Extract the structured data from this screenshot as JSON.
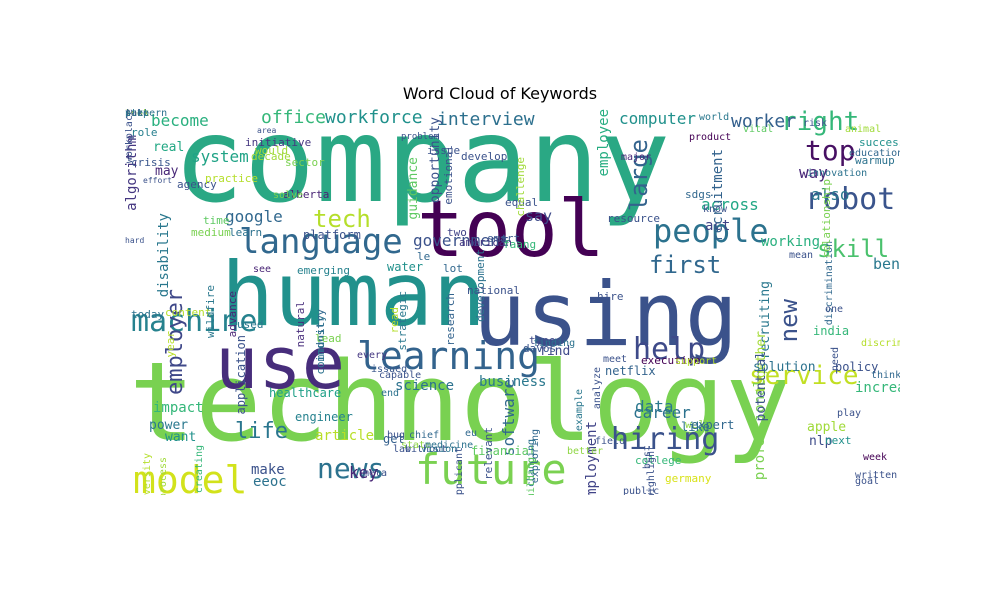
{
  "chart_data": {
    "type": "wordcloud",
    "title": "Word Cloud of Keywords",
    "words": [
      {
        "text": "company",
        "c": "#2aa884",
        "r": 0
      },
      {
        "text": "technology",
        "c": "#79d151",
        "r": 0
      },
      {
        "text": "human",
        "c": "#21918c",
        "r": 0
      },
      {
        "text": "using",
        "c": "#3b528b",
        "r": 0
      },
      {
        "text": "tool",
        "c": "#440154",
        "r": 0
      },
      {
        "text": "use",
        "c": "#472d7b",
        "r": 0
      },
      {
        "text": "future",
        "c": "#7ad151",
        "r": 0
      },
      {
        "text": "model",
        "c": "#d2e21b",
        "r": 0
      },
      {
        "text": "language",
        "c": "#31688e",
        "r": 0
      },
      {
        "text": "learning",
        "c": "#33638d",
        "r": 0
      },
      {
        "text": "people",
        "c": "#2c728e",
        "r": 0
      },
      {
        "text": "robot",
        "c": "#3a548c",
        "r": 0
      },
      {
        "text": "hiring",
        "c": "#3b528b",
        "r": 0
      },
      {
        "text": "news",
        "c": "#2c728e",
        "r": 0
      },
      {
        "text": "machine",
        "c": "#26828e",
        "r": 0
      },
      {
        "text": "help",
        "c": "#3e4a89",
        "r": 0
      },
      {
        "text": "top",
        "c": "#471063",
        "r": 0
      },
      {
        "text": "right",
        "c": "#35b779",
        "r": 0
      },
      {
        "text": "service",
        "c": "#c2df23",
        "r": 0
      },
      {
        "text": "tech",
        "c": "#b5de2b",
        "r": 0
      },
      {
        "text": "first",
        "c": "#31688e",
        "r": 0
      },
      {
        "text": "skill",
        "c": "#4ac16d",
        "r": 0
      },
      {
        "text": "new",
        "c": "#3b528b",
        "r": -90
      },
      {
        "text": "large",
        "c": "#33638d",
        "r": -90
      },
      {
        "text": "employer",
        "c": "#3f4889",
        "r": -90
      },
      {
        "text": "life",
        "c": "#2a768e",
        "r": 0
      },
      {
        "text": "interview",
        "c": "#2d708e",
        "r": 0
      },
      {
        "text": "workforce",
        "c": "#21918c",
        "r": 0
      },
      {
        "text": "office",
        "c": "#35b779",
        "r": 0
      },
      {
        "text": "become",
        "c": "#2ab07f",
        "r": 0
      },
      {
        "text": "system",
        "c": "#20a386",
        "r": 0
      },
      {
        "text": "google",
        "c": "#31688e",
        "r": 0
      },
      {
        "text": "computer",
        "c": "#21918c",
        "r": 0
      },
      {
        "text": "worker",
        "c": "#34608d",
        "r": 0
      },
      {
        "text": "way",
        "c": "#482878",
        "r": 0
      },
      {
        "text": "also",
        "c": "#2a788e",
        "r": 0
      },
      {
        "text": "across",
        "c": "#22a785",
        "r": 0
      },
      {
        "text": "say",
        "c": "#3e4a89",
        "r": 0
      },
      {
        "text": "benefit",
        "c": "#2a788e",
        "r": 0
      },
      {
        "text": "data",
        "c": "#2a788e",
        "r": 0
      },
      {
        "text": "career",
        "c": "#2c728e",
        "r": 0
      },
      {
        "text": "key",
        "c": "#482475",
        "r": 0
      },
      {
        "text": "article",
        "c": "#b8de29",
        "r": 0
      },
      {
        "text": "eeoc",
        "c": "#2c728e",
        "r": 0
      },
      {
        "text": "make",
        "c": "#3b528b",
        "r": 0
      },
      {
        "text": "science",
        "c": "#2c728e",
        "r": 0
      },
      {
        "text": "business",
        "c": "#2a788e",
        "r": 0
      },
      {
        "text": "government",
        "c": "#3b528b",
        "r": 0
      },
      {
        "text": "act",
        "c": "#414487",
        "r": 0
      },
      {
        "text": "working",
        "c": "#2ab07f",
        "r": 0
      },
      {
        "text": "increasingly",
        "c": "#35b779",
        "r": 0
      },
      {
        "text": "software",
        "c": "#31688e",
        "r": -90
      },
      {
        "text": "employee",
        "c": "#26ad81",
        "r": -90
      },
      {
        "text": "guidance",
        "c": "#5ec962",
        "r": -90
      },
      {
        "text": "opportunity",
        "c": "#3b528b",
        "r": -90
      },
      {
        "text": "disability",
        "c": "#2a788e",
        "r": -90
      },
      {
        "text": "algorithm",
        "c": "#453781",
        "r": -90
      },
      {
        "text": "recruitment",
        "c": "#33638d",
        "r": -90
      },
      {
        "text": "employment",
        "c": "#404387",
        "r": -90
      },
      {
        "text": "professional",
        "c": "#7ad151",
        "r": -90
      },
      {
        "text": "recruiting",
        "c": "#2a788e",
        "r": -90
      },
      {
        "text": "together",
        "c": "#a5db36",
        "r": -90
      },
      {
        "text": "potential",
        "c": "#3b528b",
        "r": -90
      },
      {
        "text": "solution",
        "c": "#2c728e",
        "r": 0
      },
      {
        "text": "apple",
        "c": "#a0da39",
        "r": 0
      },
      {
        "text": "nlp",
        "c": "#3e4c8a",
        "r": 0
      },
      {
        "text": "engineer",
        "c": "#26828e",
        "r": 0
      },
      {
        "text": "impact",
        "c": "#34b679",
        "r": 0
      },
      {
        "text": "power",
        "c": "#2a788e",
        "r": 0
      },
      {
        "text": "want",
        "c": "#21918c",
        "r": 0
      },
      {
        "text": "civil",
        "c": "#3b528b",
        "r": 0
      },
      {
        "text": "real",
        "c": "#22a884",
        "r": 0
      },
      {
        "text": "may",
        "c": "#482878",
        "r": 0
      },
      {
        "text": "get",
        "c": "#34608d",
        "r": 0
      },
      {
        "text": "find",
        "c": "#3e4989",
        "r": 0
      },
      {
        "text": "financial",
        "c": "#5ec962",
        "r": 0
      },
      {
        "text": "healthcare",
        "c": "#1fa088",
        "r": 0
      },
      {
        "text": "india",
        "c": "#35b779",
        "r": 0
      },
      {
        "text": "well",
        "c": "#8fd744",
        "r": 0
      },
      {
        "text": "like",
        "c": "#2c738e",
        "r": 0
      },
      {
        "text": "policy",
        "c": "#3b528b",
        "r": 0
      },
      {
        "text": "expert",
        "c": "#31688e",
        "r": 0
      },
      {
        "text": "executive",
        "c": "#440154",
        "r": 0
      },
      {
        "text": "germany",
        "c": "#d8e219",
        "r": 0
      },
      {
        "text": "netflix",
        "c": "#33638d",
        "r": 0
      },
      {
        "text": "used",
        "c": "#2a768e",
        "r": 0
      },
      {
        "text": "role",
        "c": "#277f8e",
        "r": 0
      },
      {
        "text": "crisis",
        "c": "#39568c",
        "r": 0
      },
      {
        "text": "agency",
        "c": "#3b528b",
        "r": 0
      },
      {
        "text": "practice",
        "c": "#b5de2b",
        "r": 0
      },
      {
        "text": "initiative",
        "c": "#453781",
        "r": 0
      },
      {
        "text": "alberta",
        "c": "#482475",
        "r": 0
      },
      {
        "text": "decade",
        "c": "#a0da39",
        "r": 0
      },
      {
        "text": "would",
        "c": "#a0da39",
        "r": 0
      },
      {
        "text": "solve",
        "c": "#7ad151",
        "r": 0
      },
      {
        "text": "time",
        "c": "#5ec962",
        "r": 0
      },
      {
        "text": "medium",
        "c": "#7ad151",
        "r": 0
      },
      {
        "text": "learn",
        "c": "#2c728e",
        "r": 0
      },
      {
        "text": "platform",
        "c": "#3b528b",
        "r": 0
      },
      {
        "text": "american",
        "c": "#453781",
        "r": 0
      },
      {
        "text": "development",
        "c": "#2c728e",
        "r": -90
      },
      {
        "text": "smart",
        "c": "#39568c",
        "r": 0
      },
      {
        "text": "faang",
        "c": "#35b779",
        "r": 0
      },
      {
        "text": "two",
        "c": "#404387",
        "r": 0
      },
      {
        "text": "lot",
        "c": "#31688e",
        "r": 0
      },
      {
        "text": "le",
        "c": "#31688e",
        "r": 0
      },
      {
        "text": "water",
        "c": "#21918c",
        "r": 0
      },
      {
        "text": "emerging",
        "c": "#26828e",
        "r": 0
      },
      {
        "text": "see",
        "c": "#482475",
        "r": 0
      },
      {
        "text": "content",
        "c": "#b5de2b",
        "r": 0
      },
      {
        "text": "today",
        "c": "#2c728e",
        "r": 0
      },
      {
        "text": "year",
        "c": "#b8de29",
        "r": -90
      },
      {
        "text": "application",
        "c": "#3b528b",
        "r": -90
      },
      {
        "text": "advance",
        "c": "#482475",
        "r": -90
      },
      {
        "text": "wildfire",
        "c": "#2a788e",
        "r": -90
      },
      {
        "text": "natural",
        "c": "#472d7b",
        "r": -90
      },
      {
        "text": "industry",
        "c": "#31688e",
        "r": -90
      },
      {
        "text": "community",
        "c": "#2c728e",
        "r": -90
      },
      {
        "text": "lead",
        "c": "#7ad151",
        "r": 0
      },
      {
        "text": "read",
        "c": "#b5de2b",
        "r": -90
      },
      {
        "text": "strategic",
        "c": "#2a788e",
        "r": -90
      },
      {
        "text": "research",
        "c": "#33638d",
        "r": -90
      },
      {
        "text": "national",
        "c": "#3b528b",
        "r": 0
      },
      {
        "text": "hire",
        "c": "#3b528b",
        "r": 0
      },
      {
        "text": "davos",
        "c": "#39568c",
        "r": 0
      },
      {
        "text": "type",
        "c": "#3e4989",
        "r": 0
      },
      {
        "text": "finding",
        "c": "#2c728e",
        "r": 0
      },
      {
        "text": "every",
        "c": "#453781",
        "r": 0
      },
      {
        "text": "issued",
        "c": "#39568c",
        "r": 0
      },
      {
        "text": "capable",
        "c": "#3b528b",
        "r": 0
      },
      {
        "text": "end",
        "c": "#2c728e",
        "r": 0
      },
      {
        "text": "bug",
        "c": "#3b528b",
        "r": 0
      },
      {
        "text": "chief",
        "c": "#31688e",
        "r": 0
      },
      {
        "text": "without",
        "c": "#3b528b",
        "r": 0
      },
      {
        "text": "vision",
        "c": "#2c728e",
        "r": 0
      },
      {
        "text": "meta",
        "c": "#3b528b",
        "r": 0
      },
      {
        "text": "state",
        "c": "#8fd744",
        "r": 0
      },
      {
        "text": "lab",
        "c": "#3b528b",
        "r": 0
      },
      {
        "text": "medicine",
        "c": "#2c728e",
        "r": 0
      },
      {
        "text": "process",
        "c": "#a0da39",
        "r": -90
      },
      {
        "text": "university",
        "c": "#b5de2b",
        "r": -90
      },
      {
        "text": "creating",
        "c": "#35b779",
        "r": -90
      },
      {
        "text": "applicant",
        "c": "#3b528b",
        "r": -90
      },
      {
        "text": "eu",
        "c": "#31688e",
        "r": 0
      },
      {
        "text": "relevant",
        "c": "#3b528b",
        "r": -90
      },
      {
        "text": "changing",
        "c": "#2c728e",
        "r": -90
      },
      {
        "text": "building",
        "c": "#5ec962",
        "r": -90
      },
      {
        "text": "analyze",
        "c": "#3b528b",
        "r": -90
      },
      {
        "text": "field",
        "c": "#3b528b",
        "r": 0
      },
      {
        "text": "better",
        "c": "#8fd744",
        "r": 0
      },
      {
        "text": "best",
        "c": "#3b528b",
        "r": -90
      },
      {
        "text": "college",
        "c": "#35b779",
        "r": 0
      },
      {
        "text": "public",
        "c": "#3b528b",
        "r": 0
      },
      {
        "text": "week",
        "c": "#440154",
        "r": 0
      },
      {
        "text": "written",
        "c": "#3b528b",
        "r": 0
      },
      {
        "text": "goal",
        "c": "#3b528b",
        "r": 0
      },
      {
        "text": "next",
        "c": "#21918c",
        "r": 0
      },
      {
        "text": "discriminate",
        "c": "#b5de2b",
        "r": 0
      },
      {
        "text": "think",
        "c": "#31688e",
        "r": 0
      },
      {
        "text": "need",
        "c": "#3b528b",
        "r": -90
      },
      {
        "text": "play",
        "c": "#3b528b",
        "r": 0
      },
      {
        "text": "discrimination",
        "c": "#31688e",
        "r": -90
      },
      {
        "text": "mean",
        "c": "#3b528b",
        "r": 0
      },
      {
        "text": "one",
        "c": "#3b528b",
        "r": 0
      },
      {
        "text": "relationship",
        "c": "#7ad151",
        "r": -90
      },
      {
        "text": "innovation",
        "c": "#2c728e",
        "r": 0
      },
      {
        "text": "education",
        "c": "#31688e",
        "r": 0
      },
      {
        "text": "success",
        "c": "#21918c",
        "r": 0
      },
      {
        "text": "warmup",
        "c": "#2c728e",
        "r": 0
      },
      {
        "text": "animal",
        "c": "#a0da39",
        "r": 0
      },
      {
        "text": "risk",
        "c": "#3b528b",
        "r": 0
      },
      {
        "text": "vital",
        "c": "#5ec962",
        "r": 0
      },
      {
        "text": "world",
        "c": "#2a788e",
        "r": 0
      },
      {
        "text": "know",
        "c": "#3b528b",
        "r": 0
      },
      {
        "text": "sdgs",
        "c": "#31688e",
        "r": 0
      },
      {
        "text": "product",
        "c": "#440154",
        "r": 0
      },
      {
        "text": "major",
        "c": "#482878",
        "r": 0
      },
      {
        "text": "equal",
        "c": "#3b528b",
        "r": 0
      },
      {
        "text": "meet",
        "c": "#3b528b",
        "r": 0
      },
      {
        "text": "support",
        "c": "#b5de2b",
        "r": 0
      },
      {
        "text": "example",
        "c": "#2a788e",
        "r": -90
      },
      {
        "text": "highlight",
        "c": "#3b528b",
        "r": -90
      },
      {
        "text": "exploring",
        "c": "#31688e",
        "r": -90
      },
      {
        "text": "user",
        "c": "#2a788e",
        "r": 0
      },
      {
        "text": "resource",
        "c": "#3b528b",
        "r": 0
      },
      {
        "text": "challenge",
        "c": "#a0da39",
        "r": -90
      },
      {
        "text": "emotional",
        "c": "#3b528b",
        "r": -90
      },
      {
        "text": "develop",
        "c": "#3b528b",
        "r": 0
      },
      {
        "text": "issue",
        "c": "#3b528b",
        "r": 0
      },
      {
        "text": "sector",
        "c": "#7ad151",
        "r": 0
      },
      {
        "text": "problem",
        "c": "#3b528b",
        "r": 0
      },
      {
        "text": "area",
        "c": "#3b528b",
        "r": 0
      },
      {
        "text": "effort",
        "c": "#3b528b",
        "r": 0
      },
      {
        "text": "hard",
        "c": "#3b528b",
        "r": 0
      },
      {
        "text": "pattern",
        "c": "#2c728e",
        "r": 0
      },
      {
        "text": "workplace",
        "c": "#3b528b",
        "r": -90
      },
      {
        "text": "look",
        "c": "#a0da39",
        "r": 0
      },
      {
        "text": "take",
        "c": "#3b528b",
        "r": 0
      },
      {
        "text": "step",
        "c": "#2a788e",
        "r": 0
      }
    ]
  }
}
